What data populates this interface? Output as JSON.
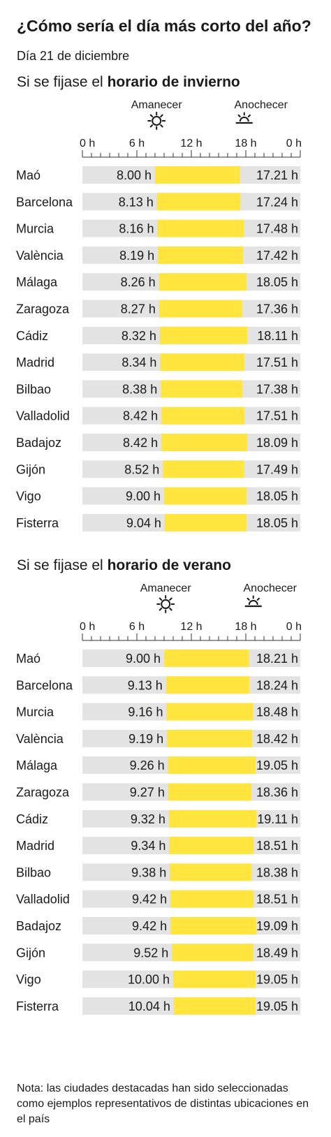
{
  "title": "¿Cómo sería el día más corto del año?",
  "subtitle": "Día 21 de diciembre",
  "note": "Nota: las ciudades destacadas han sido seleccionadas como ejemplos representativos de distintas ubicaciones en el país",
  "colors": {
    "daylight": "#ffe53d",
    "night": "#e3e3e3",
    "text": "#1a1a1a"
  },
  "chart_data": [
    {
      "type": "bar",
      "title_prefix": "Si se fijase el ",
      "title_bold": "horario de invierno",
      "sunrise_label": "Amanecer",
      "sunset_label": "Anochecer",
      "sunrise_icon": "sun-icon",
      "sunset_icon": "sunset-icon",
      "xlim": [
        0,
        24
      ],
      "ticks": [
        0,
        6,
        12,
        18,
        24
      ],
      "tick_labels": [
        "0 h",
        "6 h",
        "12 h",
        "18 h",
        "0 h"
      ],
      "categories": [
        "Maó",
        "Barcelona",
        "Murcia",
        "València",
        "Málaga",
        "Zaragoza",
        "Cádiz",
        "Madrid",
        "Bilbao",
        "Valladolid",
        "Badajoz",
        "Gijón",
        "Vigo",
        "Fisterra"
      ],
      "sunrise": [
        "8.00",
        "8.13",
        "8.16",
        "8.19",
        "8.26",
        "8.27",
        "8.32",
        "8.34",
        "8.38",
        "8.42",
        "8.42",
        "8.52",
        "9.00",
        "9.04"
      ],
      "sunset": [
        "17.21",
        "17.24",
        "17.48",
        "17.42",
        "18.05",
        "17.36",
        "18.11",
        "17.51",
        "17.38",
        "17.51",
        "18.09",
        "17.49",
        "18.05",
        "18.05"
      ],
      "sunrise_labels": [
        "8.00 h",
        "8.13 h",
        "8.16 h",
        "8.19 h",
        "8.26 h",
        "8.27 h",
        "8.32 h",
        "8.34 h",
        "8.38 h",
        "8.42 h",
        "8.42 h",
        "8.52 h",
        "9.00 h",
        "9.04 h"
      ],
      "sunset_labels": [
        "17.21 h",
        "17.24 h",
        "17.48 h",
        "17.42 h",
        "18.05 h",
        "17.36 h",
        "18.11 h",
        "17.51 h",
        "17.38 h",
        "17.51 h",
        "18.09 h",
        "17.49 h",
        "18.05 h",
        "18.05 h"
      ]
    },
    {
      "type": "bar",
      "title_prefix": "Si se fijase el ",
      "title_bold": "horario de verano",
      "sunrise_label": "Amanecer",
      "sunset_label": "Anochecer",
      "sunrise_icon": "sun-icon",
      "sunset_icon": "sunset-icon",
      "xlim": [
        0,
        24
      ],
      "ticks": [
        0,
        6,
        12,
        18,
        24
      ],
      "tick_labels": [
        "0 h",
        "6 h",
        "12 h",
        "18 h",
        "0 h"
      ],
      "categories": [
        "Maó",
        "Barcelona",
        "Murcia",
        "València",
        "Málaga",
        "Zaragoza",
        "Cádiz",
        "Madrid",
        "Bilbao",
        "Valladolid",
        "Badajoz",
        "Gijón",
        "Vigo",
        "Fisterra"
      ],
      "sunrise": [
        "9.00",
        "9.13",
        "9.16",
        "9.19",
        "9.26",
        "9.27",
        "9.32",
        "9.34",
        "9.38",
        "9.42",
        "9.42",
        "9.52",
        "10.00",
        "10.04"
      ],
      "sunset": [
        "18.21",
        "18.24",
        "18.48",
        "18.42",
        "19.05",
        "18.36",
        "19.11",
        "18.51",
        "18.38",
        "18.51",
        "19.09",
        "18.49",
        "19.05",
        "19.05"
      ],
      "sunrise_labels": [
        "9.00 h",
        "9.13 h",
        "9.16 h",
        "9.19 h",
        "9.26 h",
        "9.27 h",
        "9.32 h",
        "9.34 h",
        "9.38 h",
        "9.42 h",
        "9.42 h",
        "9.52 h",
        "10.00 h",
        "10.04 h"
      ],
      "sunset_labels": [
        "18.21 h",
        "18.24 h",
        "18.48 h",
        "18.42 h",
        "19.05 h",
        "18.36 h",
        "19.11 h",
        "18.51 h",
        "18.38 h",
        "18.51 h",
        "19.09 h",
        "18.49 h",
        "19.05 h",
        "19.05 h"
      ]
    }
  ]
}
